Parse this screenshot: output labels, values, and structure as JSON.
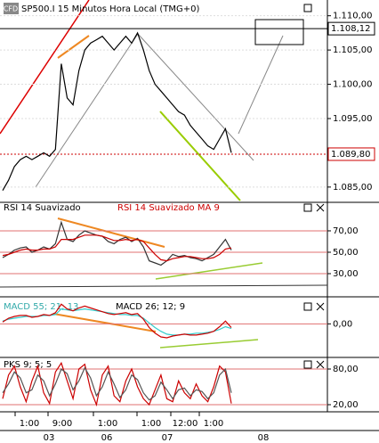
{
  "chart_data": [
    {
      "type": "line",
      "title": "SP500.I 15 Minutos Hora Local (TMG+0)",
      "logo": "CFD",
      "ylim": [
        1082.9,
        1112.3
      ],
      "yticks": [
        {
          "value": 1085,
          "label": "1.085,00"
        },
        {
          "value": 1095,
          "label": "1.095,00"
        },
        {
          "value": 1100,
          "label": "1.100,00"
        },
        {
          "value": 1105,
          "label": "1.105,00"
        },
        {
          "value": 1110,
          "label": "1.110,00"
        }
      ],
      "price_lines": [
        {
          "value": 1108.12,
          "label": "1.108,12",
          "color": "#000000"
        },
        {
          "value": 1089.8,
          "label": "1.089,80",
          "color": "#cc0000"
        }
      ],
      "series": [
        {
          "color": "#000000",
          "values": [
            1084.5,
            1086,
            1088,
            1089,
            1089.5,
            1089,
            1089.5,
            1090,
            1089.5,
            1090.5,
            1103,
            1098,
            1097,
            1102,
            1105,
            1106,
            1106.5,
            1107,
            1106,
            1105,
            1106,
            1107,
            1106,
            1107.5,
            1105,
            1102,
            1100,
            1099,
            1098,
            1097,
            1096,
            1095.5,
            1094,
            1093,
            1092,
            1091,
            1090.5,
            1092,
            1093.5,
            1090
          ]
        }
      ]
    },
    {
      "type": "line",
      "ylim": [
        17.5,
        95.8
      ],
      "yticks": [
        {
          "value": 70,
          "label": "70,00"
        },
        {
          "value": 50,
          "label": "50,00"
        },
        {
          "value": 30,
          "label": "30,00"
        }
      ],
      "series": [
        {
          "name": "RSI 14 Suavizado",
          "color": "#333333",
          "values": [
            45,
            48,
            52,
            54,
            55,
            50,
            52,
            55,
            53,
            58,
            78,
            62,
            60,
            66,
            70,
            68,
            66,
            65,
            60,
            58,
            62,
            64,
            60,
            63,
            55,
            42,
            40,
            38,
            42,
            48,
            46,
            47,
            45,
            44,
            42,
            45,
            48,
            55,
            62,
            52
          ]
        },
        {
          "name": "RSI 14 Suavizado MA 9",
          "color": "#cc0000",
          "values": [
            47,
            48,
            50,
            52,
            53,
            52,
            52,
            53,
            53,
            55,
            62,
            62,
            62,
            64,
            66,
            66,
            66,
            65,
            63,
            61,
            61,
            62,
            61,
            62,
            60,
            54,
            48,
            43,
            42,
            44,
            45,
            46,
            46,
            45,
            44,
            44,
            45,
            48,
            53,
            54
          ]
        }
      ]
    },
    {
      "type": "line",
      "ylim": [
        -3.5,
        2.8
      ],
      "yticks": [
        {
          "value": 0,
          "label": "0,00"
        }
      ],
      "series": [
        {
          "name": "MACD 55; 21; 13",
          "color": "#33cccc",
          "values": [
            0.3,
            0.5,
            0.6,
            0.7,
            0.8,
            0.8,
            0.8,
            0.9,
            0.9,
            1,
            1.6,
            1.5,
            1.4,
            1.5,
            1.6,
            1.5,
            1.4,
            1.3,
            1.2,
            1.1,
            1,
            1,
            0.9,
            0.9,
            0.6,
            0.1,
            -0.4,
            -0.8,
            -1.1,
            -1.2,
            -1.2,
            -1.1,
            -1.1,
            -1,
            -1,
            -0.9,
            -0.8,
            -0.6,
            -0.3,
            -0.5
          ]
        },
        {
          "name": "MACD 26; 12; 9",
          "color": "#cc0000",
          "values": [
            0.2,
            0.6,
            0.8,
            0.9,
            0.9,
            0.7,
            0.8,
            1,
            0.9,
            1.2,
            2.1,
            1.6,
            1.4,
            1.7,
            1.9,
            1.7,
            1.5,
            1.3,
            1.1,
            1,
            1.1,
            1.2,
            1,
            1.1,
            0.5,
            -0.4,
            -1,
            -1.4,
            -1.5,
            -1.3,
            -1.2,
            -1.1,
            -1.2,
            -1.2,
            -1.1,
            -1,
            -0.8,
            -0.3,
            0.3,
            -0.4
          ]
        }
      ]
    },
    {
      "type": "line",
      "ylim": [
        8,
        98
      ],
      "yticks": [
        {
          "value": 80,
          "label": "80,00"
        },
        {
          "value": 20,
          "label": "20,00"
        }
      ],
      "series": [
        {
          "name": "PKS 9; 5; 5",
          "color": "#cc0000",
          "values": [
            30,
            70,
            85,
            50,
            25,
            60,
            85,
            40,
            22,
            75,
            90,
            60,
            30,
            80,
            88,
            45,
            20,
            70,
            85,
            35,
            25,
            60,
            80,
            50,
            30,
            20,
            45,
            70,
            30,
            25,
            60,
            40,
            30,
            55,
            35,
            25,
            50,
            85,
            75,
            22
          ]
        },
        {
          "color": "#555555",
          "values": [
            40,
            55,
            75,
            65,
            40,
            45,
            70,
            60,
            35,
            55,
            80,
            72,
            45,
            60,
            82,
            65,
            35,
            50,
            75,
            55,
            32,
            45,
            70,
            62,
            40,
            28,
            35,
            58,
            45,
            30,
            45,
            48,
            35,
            45,
            42,
            30,
            40,
            70,
            80,
            40
          ]
        }
      ]
    }
  ],
  "x_axis": {
    "time_labels": [
      "1:00",
      "9:00",
      "1:00",
      "1:00",
      "12:00",
      "1:00"
    ],
    "date_labels": [
      "03",
      "06",
      "07",
      "08"
    ]
  }
}
